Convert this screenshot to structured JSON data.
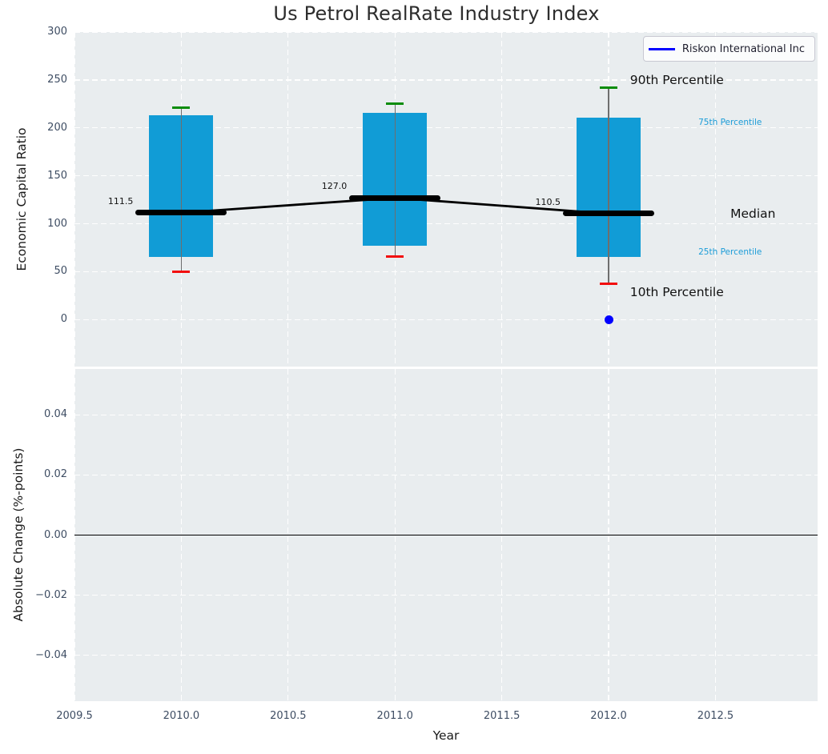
{
  "legend": {
    "label": "Riskon International Inc"
  },
  "colors": {
    "box_fill": "#119cd6",
    "median": "#000000",
    "trend_line": "#000000",
    "whisker": "#6e6e6e",
    "cap_90th": "#098c09",
    "cap_10th": "#f20d0d",
    "company": "#0000ff",
    "plot_bg": "#e9edef",
    "grid": "#ffffff",
    "tick_label": "#3e4d63",
    "annotation_dark": "#111111",
    "annotation_percentile": "#1b9cd8"
  },
  "chart_data": [
    {
      "type": "boxplot",
      "title": "Us Petrol RealRate Industry Index",
      "ylabel": "Economic Capital Ratio",
      "grid": true,
      "legend_position": "upper right",
      "xlim": [
        2009.5,
        2012.978
      ],
      "ylim": [
        -49,
        300
      ],
      "xticks": {
        "values": [
          2009.5,
          2010.0,
          2010.5,
          2011.0,
          2011.5,
          2012.0,
          2012.5
        ],
        "labels": [
          "2009.5",
          "2010.0",
          "2010.5",
          "2011.0",
          "2011.5",
          "2012.0",
          "2012.5"
        ]
      },
      "yticks": {
        "values": [
          0,
          50,
          100,
          150,
          200,
          250,
          300
        ],
        "labels": [
          "0",
          "50",
          "100",
          "150",
          "200",
          "250",
          "300"
        ]
      },
      "boxes": [
        {
          "year": 2010,
          "p10": 50,
          "p25": 65,
          "median": 111.5,
          "p75": 213,
          "p90": 221,
          "label": "111.5"
        },
        {
          "year": 2011,
          "p10": 66,
          "p25": 77,
          "median": 127.0,
          "p75": 216,
          "p90": 225,
          "label": "127.0"
        },
        {
          "year": 2012,
          "p10": 37,
          "p25": 65,
          "median": 110.5,
          "p75": 211,
          "p90": 242,
          "label": "110.5"
        }
      ],
      "median_trend": {
        "x": [
          2010,
          2011,
          2012
        ],
        "y": [
          111.5,
          127.0,
          110.5
        ]
      },
      "company_series": {
        "name": "Riskon International Inc",
        "points": [
          {
            "x": 2012,
            "y": 0
          }
        ]
      },
      "annotations": [
        {
          "text": "90th Percentile",
          "x": 2012.1,
          "y": 250,
          "size": "large",
          "color": "#111111"
        },
        {
          "text": "75th Percentile",
          "x": 2012.42,
          "y": 206,
          "size": "small",
          "color": "#1b9cd8"
        },
        {
          "text": "Median",
          "x": 2012.57,
          "y": 110.5,
          "size": "large",
          "color": "#111111"
        },
        {
          "text": "25th Percentile",
          "x": 2012.42,
          "y": 70,
          "size": "small",
          "color": "#1b9cd8"
        },
        {
          "text": "10th Percentile",
          "x": 2012.1,
          "y": 29,
          "size": "large",
          "color": "#111111"
        }
      ]
    },
    {
      "type": "line",
      "ylabel": "Absolute Change (%-points)",
      "xlabel": "Year",
      "grid": true,
      "xlim": [
        2009.5,
        2012.978
      ],
      "ylim": [
        -0.0553,
        0.0553
      ],
      "xticks": {
        "values": [
          2009.5,
          2010.0,
          2010.5,
          2011.0,
          2011.5,
          2012.0,
          2012.5
        ],
        "labels": [
          "2009.5",
          "2010.0",
          "2010.5",
          "2011.0",
          "2011.5",
          "2012.0",
          "2012.5"
        ]
      },
      "yticks": {
        "values": [
          0.04,
          0.02,
          0,
          -0.02,
          -0.04
        ],
        "labels": [
          "0.04",
          "0.02",
          "0.00",
          "−0.02",
          "−0.04"
        ]
      },
      "zero_line": 0,
      "series": []
    }
  ]
}
